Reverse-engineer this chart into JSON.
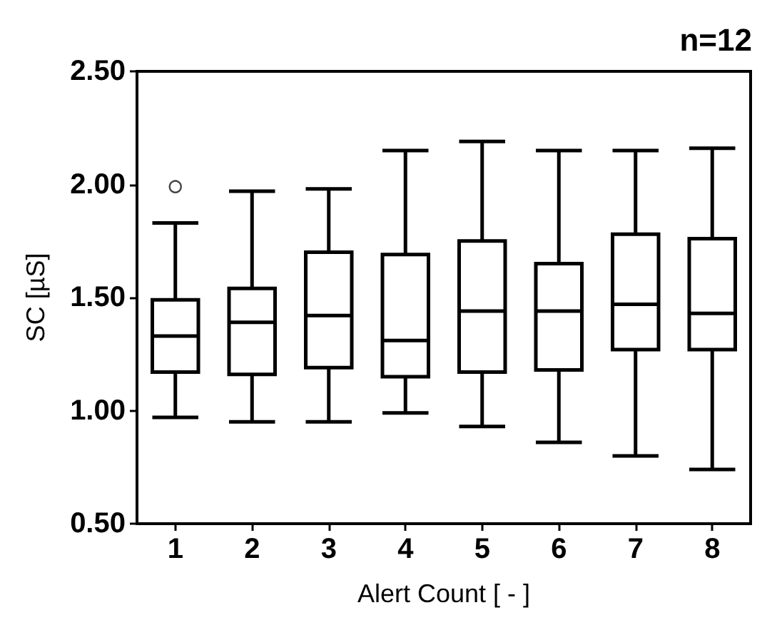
{
  "chart_data": {
    "type": "box",
    "title": "n=12",
    "xlabel": "Alert Count [ - ]",
    "ylabel": "SC [µS]",
    "categories": [
      "1",
      "2",
      "3",
      "4",
      "5",
      "6",
      "7",
      "8"
    ],
    "color": "#000000",
    "boxes": [
      {
        "low": 0.97,
        "q1": 1.17,
        "median": 1.33,
        "q3": 1.49,
        "high": 1.83,
        "outliers": [
          1.99
        ]
      },
      {
        "low": 0.95,
        "q1": 1.16,
        "median": 1.39,
        "q3": 1.54,
        "high": 1.97
      },
      {
        "low": 0.95,
        "q1": 1.19,
        "median": 1.42,
        "q3": 1.7,
        "high": 1.98
      },
      {
        "low": 0.99,
        "q1": 1.15,
        "median": 1.31,
        "q3": 1.69,
        "high": 2.15
      },
      {
        "low": 0.93,
        "q1": 1.17,
        "median": 1.44,
        "q3": 1.75,
        "high": 2.19
      },
      {
        "low": 0.86,
        "q1": 1.18,
        "median": 1.44,
        "q3": 1.65,
        "high": 2.15
      },
      {
        "low": 0.8,
        "q1": 1.27,
        "median": 1.47,
        "q3": 1.78,
        "high": 2.15
      },
      {
        "low": 0.74,
        "q1": 1.27,
        "median": 1.43,
        "q3": 1.76,
        "high": 2.16
      }
    ],
    "ylim": [
      0.5,
      2.5
    ],
    "yticks": [
      {
        "value": 0.5,
        "label": "0.50"
      },
      {
        "value": 1.0,
        "label": "1.00"
      },
      {
        "value": 1.5,
        "label": "1.50"
      },
      {
        "value": 2.0,
        "label": "2.00"
      },
      {
        "value": 2.5,
        "label": "2.50"
      }
    ],
    "grid": false
  }
}
